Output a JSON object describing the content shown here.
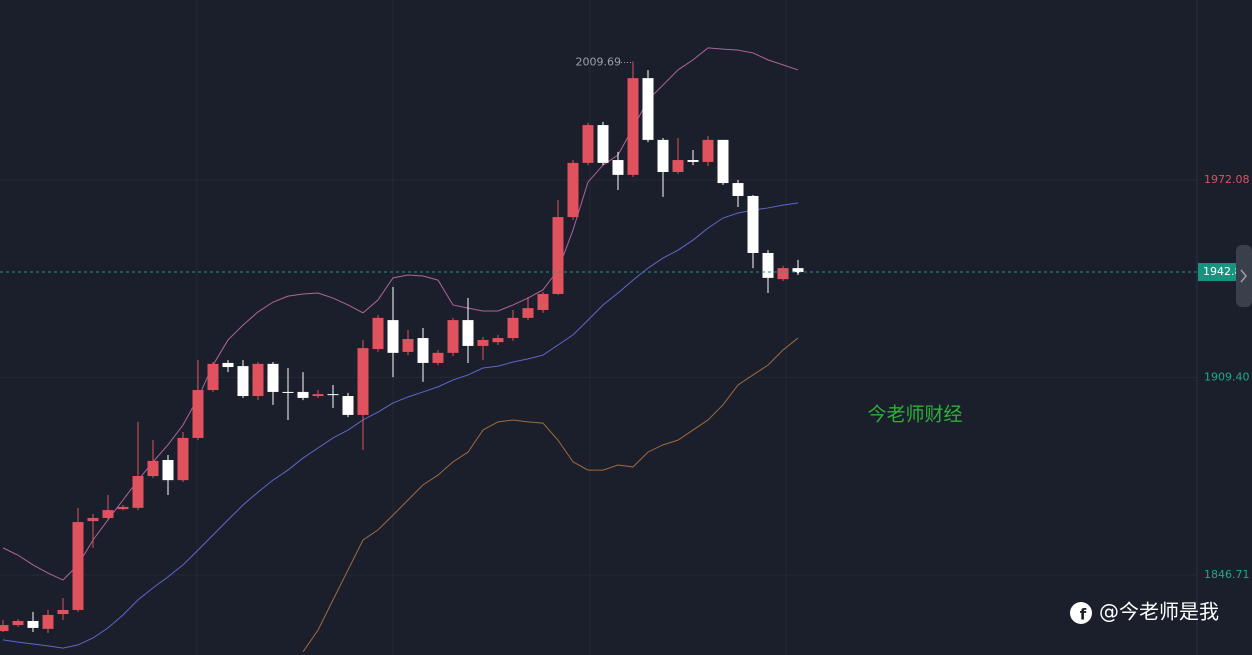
{
  "chart_data": {
    "type": "candlestick",
    "open": [
      1828.9,
      1830.8,
      1832.1,
      1829.6,
      1834.3,
      1835.6,
      1863.8,
      1864.8,
      1867.6,
      1868.0,
      1878.1,
      1883.2,
      1876.8,
      1890.2,
      1905.4,
      1914.0,
      1913.0,
      1903.5,
      1913.7,
      1904.8,
      1904.8,
      1903.5,
      1904.1,
      1903.5,
      1897.5,
      1918.4,
      1927.6,
      1917.5,
      1921.9,
      1914.0,
      1917.2,
      1927.6,
      1919.4,
      1920.6,
      1921.9,
      1928.3,
      1930.8,
      1935.9,
      1960.3,
      1977.5,
      1989.5,
      1978.4,
      1973.7,
      2004.4,
      1984.8,
      1974.6,
      1978.4,
      1977.8,
      1984.8,
      1971.1,
      1967.0,
      1948.9,
      1940.6,
      1944.1
    ],
    "high": [
      1832.4,
      1832.7,
      1835.0,
      1835.6,
      1839.4,
      1868.0,
      1866.1,
      1872.1,
      1868.9,
      1895.3,
      1889.5,
      1884.8,
      1892.1,
      1914.9,
      1914.3,
      1914.9,
      1914.9,
      1914.3,
      1914.3,
      1912.4,
      1911.1,
      1905.4,
      1907.0,
      1904.5,
      1921.3,
      1929.2,
      1938.1,
      1924.5,
      1925.1,
      1918.1,
      1928.3,
      1934.6,
      1922.2,
      1922.9,
      1930.8,
      1934.9,
      1936.5,
      1965.7,
      1978.4,
      1990.2,
      1990.5,
      1981.0,
      2009.69,
      2007.0,
      1985.4,
      1985.4,
      1981.6,
      1986.0,
      1984.8,
      1972.1,
      1967.3,
      1949.8,
      1944.8,
      1946.7
    ],
    "low": [
      1828.6,
      1830.2,
      1828.6,
      1828.3,
      1832.4,
      1835.0,
      1855.3,
      1864.2,
      1867.3,
      1867.3,
      1877.5,
      1872.1,
      1876.2,
      1889.5,
      1904.8,
      1911.1,
      1902.9,
      1902.2,
      1900.7,
      1895.9,
      1902.2,
      1902.9,
      1899.7,
      1896.8,
      1886.4,
      1917.5,
      1909.5,
      1916.5,
      1908.0,
      1913.3,
      1916.2,
      1914.0,
      1914.9,
      1919.7,
      1921.0,
      1927.6,
      1929.9,
      1935.6,
      1959.4,
      1976.8,
      1976.8,
      1968.9,
      1973.0,
      1984.1,
      1966.7,
      1974.0,
      1976.8,
      1976.5,
      1970.5,
      1963.5,
      1944.1,
      1936.2,
      1940.0,
      1941.9
    ],
    "close": [
      1830.8,
      1832.1,
      1829.9,
      1834.0,
      1835.6,
      1863.5,
      1864.8,
      1867.3,
      1868.3,
      1878.1,
      1882.9,
      1876.8,
      1890.2,
      1905.4,
      1913.7,
      1912.7,
      1903.5,
      1913.7,
      1904.8,
      1904.5,
      1902.9,
      1904.1,
      1903.8,
      1897.5,
      1918.7,
      1928.3,
      1917.2,
      1921.6,
      1914.0,
      1917.2,
      1927.6,
      1919.4,
      1921.3,
      1921.9,
      1928.3,
      1931.4,
      1935.9,
      1960.3,
      1977.5,
      1989.5,
      1977.5,
      1973.7,
      2004.4,
      1984.8,
      1974.6,
      1978.4,
      1977.8,
      1984.8,
      1971.1,
      1967.0,
      1948.9,
      1941.0,
      1944.1,
      1942.86
    ],
    "up_color": "#e0525e",
    "down_color": "#ffffff",
    "series": [
      {
        "color": "#b0649a",
        "values": [
          1855.3,
          1853.0,
          1849.9,
          1847.3,
          1845.1,
          1849.9,
          1857.8,
          1864.2,
          1870.5,
          1876.8,
          1882.6,
          1888.0,
          1894.3,
          1902.9,
          1913.3,
          1921.3,
          1926.0,
          1930.2,
          1933.3,
          1935.2,
          1935.9,
          1936.2,
          1934.6,
          1932.4,
          1929.9,
          1934.0,
          1941.0,
          1941.9,
          1941.6,
          1940.3,
          1932.4,
          1931.4,
          1930.5,
          1930.5,
          1932.4,
          1934.6,
          1937.2,
          1943.5,
          1956.2,
          1971.4,
          1976.8,
          1980.0,
          1988.6,
          1997.5,
          2002.2,
          2007.0,
          2010.2,
          2014.0,
          2013.6,
          2013.3,
          2012.4,
          2010.2,
          2008.6,
          2007.0
        ]
      },
      {
        "color": "#5f67c9",
        "values": [
          1826.1,
          1825.4,
          1824.8,
          1824.2,
          1823.5,
          1824.5,
          1826.7,
          1829.9,
          1834.0,
          1838.8,
          1842.6,
          1846.1,
          1849.9,
          1854.6,
          1859.4,
          1864.2,
          1868.9,
          1873.0,
          1876.8,
          1880.0,
          1883.8,
          1887.0,
          1890.2,
          1892.7,
          1895.9,
          1898.4,
          1901.3,
          1903.2,
          1904.8,
          1906.4,
          1908.6,
          1910.2,
          1912.4,
          1913.0,
          1914.3,
          1915.3,
          1916.5,
          1919.7,
          1922.9,
          1927.6,
          1932.4,
          1936.2,
          1940.3,
          1944.1,
          1947.3,
          1949.8,
          1953.0,
          1956.8,
          1960.0,
          1961.6,
          1962.5,
          1963.2,
          1964.1,
          1964.8
        ]
      },
      {
        "color": "#a0693f",
        "values": [
          null,
          null,
          null,
          null,
          null,
          null,
          null,
          null,
          null,
          null,
          null,
          null,
          null,
          null,
          null,
          null,
          null,
          null,
          null,
          null,
          1822.3,
          1829.2,
          1838.8,
          1848.3,
          1857.8,
          1861.0,
          1865.7,
          1870.5,
          1875.3,
          1878.4,
          1882.6,
          1885.7,
          1892.7,
          1895.3,
          1895.9,
          1895.3,
          1894.9,
          1889.5,
          1882.6,
          1880.0,
          1880.0,
          1881.6,
          1881.0,
          1885.7,
          1888.0,
          1889.5,
          1892.7,
          1895.9,
          1900.7,
          1907.0,
          1910.2,
          1913.3,
          1918.1,
          1921.9
        ]
      }
    ],
    "ylim": [
      1821.3,
      2029.2
    ],
    "yticks": [
      1846.71,
      {
        "value": 1909.4,
        "label": "1909.40"
      },
      1972.08
    ],
    "grid": true
  },
  "watermark": "今老师财经",
  "signature": "@今老师是我"
}
